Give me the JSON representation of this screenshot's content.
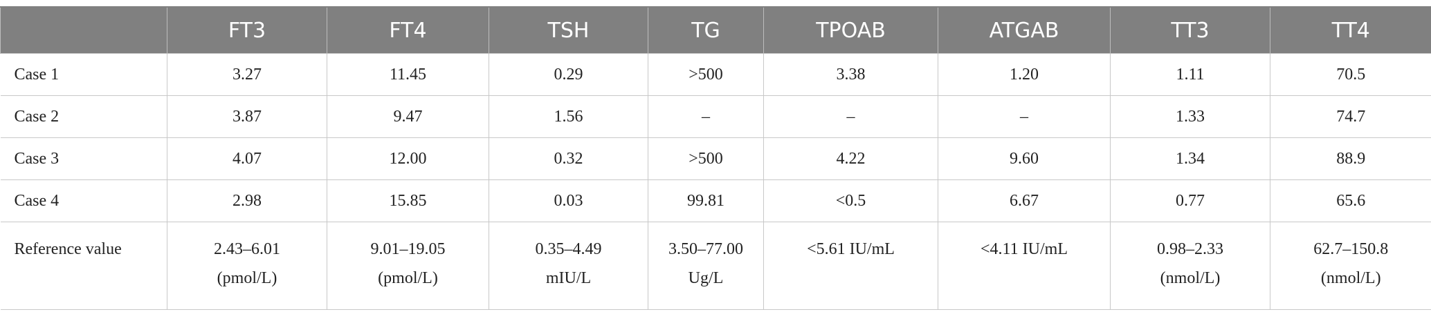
{
  "table": {
    "header": [
      "",
      "FT3",
      "FT4",
      "TSH",
      "TG",
      "TPOAB",
      "ATGAB",
      "TT3",
      "TT4"
    ],
    "rows": [
      [
        "Case 1",
        "3.27",
        "11.45",
        "0.29",
        ">500",
        "3.38",
        "1.20",
        "1.11",
        "70.5"
      ],
      [
        "Case 2",
        "3.87",
        "9.47",
        "1.56",
        "–",
        "–",
        "–",
        "1.33",
        "74.7"
      ],
      [
        "Case 3",
        "4.07",
        "12.00",
        "0.32",
        ">500",
        "4.22",
        "9.60",
        "1.34",
        "88.9"
      ],
      [
        "Case 4",
        "2.98",
        "15.85",
        "0.03",
        "99.81",
        "<0.5",
        "6.67",
        "0.77",
        "65.6"
      ]
    ],
    "reference": [
      [
        "Reference value"
      ],
      [
        "2.43–6.01",
        "(pmol/L)"
      ],
      [
        "9.01–19.05",
        "(pmol/L)"
      ],
      [
        "0.35–4.49",
        "mIU/L"
      ],
      [
        "3.50–77.00",
        "Ug/L"
      ],
      [
        "<5.61 IU/mL"
      ],
      [
        "<4.11 IU/mL"
      ],
      [
        "0.98–2.33",
        "(nmol/L)"
      ],
      [
        "62.7–150.8",
        "(nmol/L)"
      ]
    ]
  }
}
